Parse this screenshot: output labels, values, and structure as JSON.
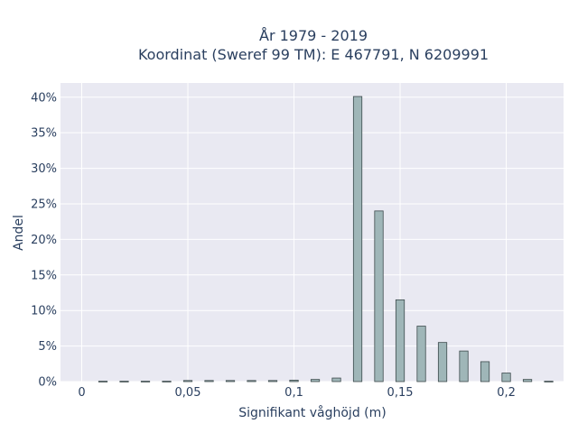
{
  "chart_data": {
    "type": "bar",
    "title_lines": [
      "År 1979 - 2019",
      "Koordinat (Sweref 99 TM): E 467791, N 6209991"
    ],
    "xlabel": "Signifikant våghöjd (m)",
    "ylabel": "Andel",
    "xlim": [
      -0.01,
      0.227
    ],
    "ylim": [
      0,
      0.42
    ],
    "x_ticks": [
      0,
      0.05,
      0.1,
      0.15,
      0.2
    ],
    "x_tick_labels": [
      "0",
      "0,05",
      "0,1",
      "0,15",
      "0,2"
    ],
    "y_ticks": [
      0,
      0.05,
      0.1,
      0.15,
      0.2,
      0.25,
      0.3,
      0.35,
      0.4
    ],
    "y_tick_labels": [
      "0%",
      "5%",
      "10%",
      "15%",
      "20%",
      "25%",
      "30%",
      "35%",
      "40%"
    ],
    "bar_width": 0.004,
    "x": [
      0.01,
      0.02,
      0.03,
      0.04,
      0.05,
      0.06,
      0.07,
      0.08,
      0.09,
      0.1,
      0.11,
      0.12,
      0.13,
      0.14,
      0.15,
      0.16,
      0.17,
      0.18,
      0.19,
      0.2,
      0.21,
      0.22
    ],
    "values": [
      0.0005,
      0.0005,
      0.0005,
      0.0005,
      0.0015,
      0.0015,
      0.0015,
      0.0015,
      0.0015,
      0.002,
      0.003,
      0.005,
      0.401,
      0.24,
      0.115,
      0.078,
      0.055,
      0.043,
      0.028,
      0.012,
      0.003,
      0.0005
    ],
    "bar_color": "#9fb6b8",
    "bar_edge_color": "#3c4a4c",
    "plot_background": "#e9e9f2",
    "grid": true
  }
}
